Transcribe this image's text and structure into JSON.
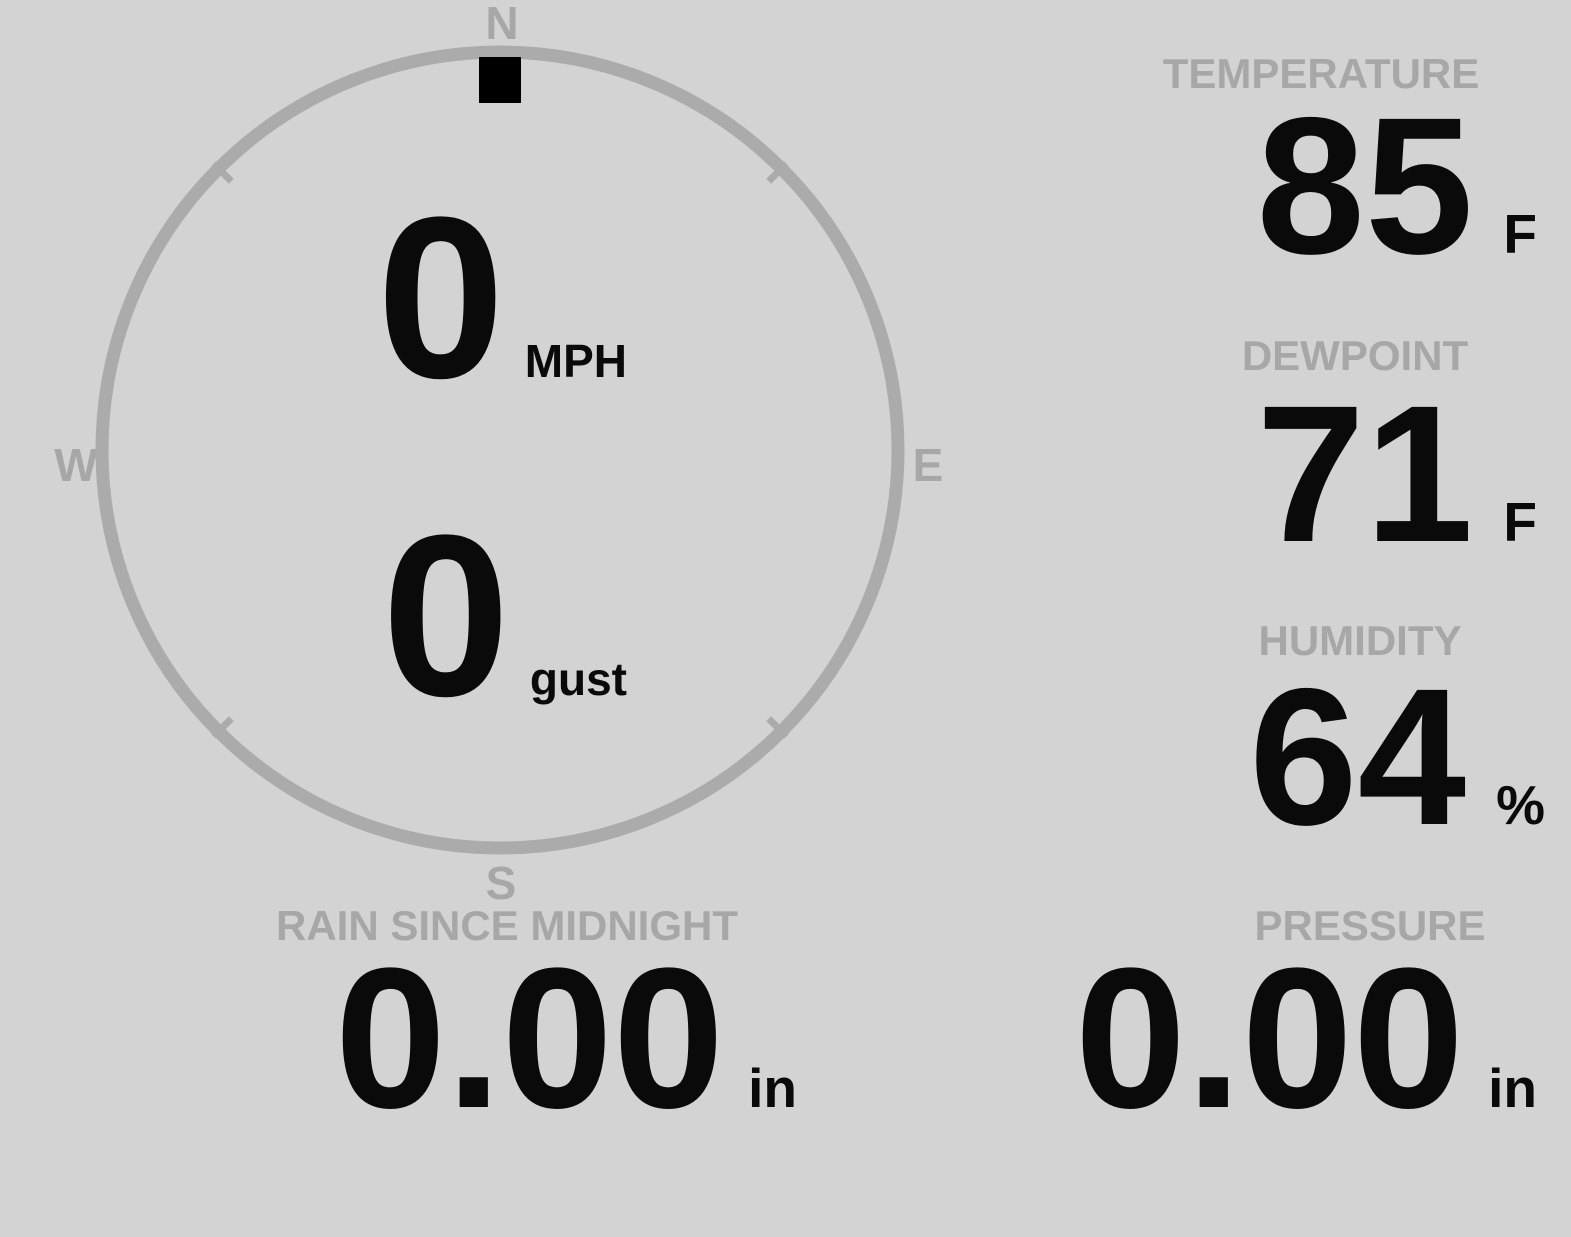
{
  "colors": {
    "background": "#d3d3d3",
    "label": "#a7a7a7",
    "ring": "#ababab",
    "value": "#0a0a0a",
    "marker": "#000000"
  },
  "compass": {
    "directions": {
      "north": "N",
      "south": "S",
      "east": "E",
      "west": "W"
    },
    "wind_direction_deg": 0,
    "wind_speed": {
      "value": "0",
      "unit": "MPH"
    },
    "wind_gust": {
      "value": "0",
      "unit": "gust"
    }
  },
  "metrics": {
    "temperature": {
      "label": "TEMPERATURE",
      "value": "85",
      "unit": "F"
    },
    "dewpoint": {
      "label": "DEWPOINT",
      "value": "71",
      "unit": "F"
    },
    "humidity": {
      "label": "HUMIDITY",
      "value": "64",
      "unit": "%"
    },
    "rain": {
      "label": "RAIN SINCE MIDNIGHT",
      "value": "0.00",
      "unit": "in"
    },
    "pressure": {
      "label": "PRESSURE",
      "value": "0.00",
      "unit": "in"
    }
  }
}
